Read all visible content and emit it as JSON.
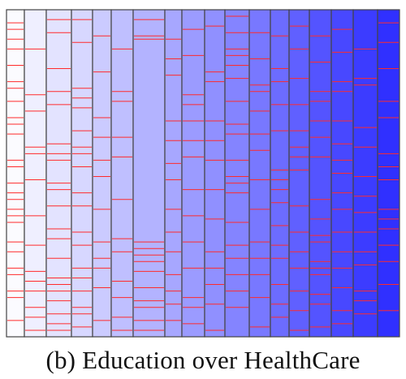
{
  "caption": "(b) Education over HealthCare",
  "colors": {
    "light_fill": "#fbfbff",
    "dark_fill": "#3030ff",
    "red_line": "#ff2a2a",
    "border": "#444444"
  },
  "strips": [
    {
      "lines": [
        0.04,
        0.06,
        0.09,
        0.12,
        0.17,
        0.22,
        0.24,
        0.28,
        0.33,
        0.35,
        0.38,
        0.46,
        0.48,
        0.53,
        0.56,
        0.58,
        0.61,
        0.63,
        0.65,
        0.71,
        0.74,
        0.79,
        0.81,
        0.86,
        0.88,
        0.95
      ]
    },
    {
      "lines": [
        0.12,
        0.26,
        0.31,
        0.42,
        0.44,
        0.52,
        0.63,
        0.72,
        0.8,
        0.83,
        0.86,
        0.91,
        0.94,
        0.98
      ]
    },
    {
      "lines": [
        0.03,
        0.07,
        0.18,
        0.25,
        0.29,
        0.41,
        0.44,
        0.46,
        0.53,
        0.55,
        0.6,
        0.67,
        0.7,
        0.76,
        0.82,
        0.84,
        0.86,
        0.89,
        0.93,
        0.96,
        0.98
      ]
    },
    {
      "lines": [
        0.03,
        0.1,
        0.24,
        0.27,
        0.3,
        0.37,
        0.42,
        0.44,
        0.48,
        0.56,
        0.6,
        0.68,
        0.72,
        0.79,
        0.82,
        0.86,
        0.91,
        0.93,
        0.97
      ]
    },
    {
      "lines": [
        0.08,
        0.19,
        0.33,
        0.39,
        0.46,
        0.51,
        0.61,
        0.71,
        0.76,
        0.79,
        0.85,
        0.95
      ]
    },
    {
      "lines": [
        0.12,
        0.25,
        0.28,
        0.39,
        0.45,
        0.58,
        0.7,
        0.74,
        0.83,
        0.88,
        0.94,
        0.98
      ]
    },
    {
      "lines": [
        0.03,
        0.08,
        0.09,
        0.71,
        0.73,
        0.75,
        0.77,
        0.8,
        0.85,
        0.89,
        0.91,
        0.95,
        0.98
      ]
    },
    {
      "lines": [
        0.09,
        0.15,
        0.2,
        0.34,
        0.4,
        0.47,
        0.52,
        0.61,
        0.68,
        0.74,
        0.81,
        0.86,
        0.9,
        0.95
      ]
    },
    {
      "lines": [
        0.06,
        0.14,
        0.26,
        0.29,
        0.34,
        0.4,
        0.45,
        0.55,
        0.63,
        0.71,
        0.79,
        0.88,
        0.91,
        0.96
      ]
    },
    {
      "lines": [
        0.05,
        0.19,
        0.22,
        0.34,
        0.4,
        0.46,
        0.55,
        0.64,
        0.74,
        0.79,
        0.84,
        0.9,
        0.98
      ]
    },
    {
      "lines": [
        0.02,
        0.07,
        0.12,
        0.14,
        0.17,
        0.21,
        0.28,
        0.35,
        0.38,
        0.46,
        0.51,
        0.53,
        0.56,
        0.65,
        0.72,
        0.76,
        0.81,
        0.86,
        0.91
      ]
    },
    {
      "lines": [
        0.07,
        0.15,
        0.23,
        0.25,
        0.31,
        0.38,
        0.43,
        0.52,
        0.61,
        0.71,
        0.76,
        0.81,
        0.88,
        0.97
      ]
    },
    {
      "lines": [
        0.08,
        0.18,
        0.22,
        0.29,
        0.37,
        0.49,
        0.52,
        0.55,
        0.59,
        0.66,
        0.72,
        0.76,
        0.84,
        0.9,
        0.94
      ]
    },
    {
      "lines": [
        0.05,
        0.12,
        0.21,
        0.29,
        0.37,
        0.42,
        0.45,
        0.49,
        0.6,
        0.68,
        0.74,
        0.79,
        0.86,
        0.92,
        0.98
      ]
    },
    {
      "lines": [
        0.08,
        0.16,
        0.25,
        0.28,
        0.34,
        0.39,
        0.45,
        0.58,
        0.64,
        0.69,
        0.71,
        0.77,
        0.79,
        0.81,
        0.87,
        0.9,
        0.97
      ]
    },
    {
      "lines": [
        0.06,
        0.13,
        0.22,
        0.25,
        0.34,
        0.41,
        0.46,
        0.5,
        0.56,
        0.61,
        0.68,
        0.74,
        0.79,
        0.85,
        0.92,
        0.96
      ]
    },
    {
      "lines": [
        0.12,
        0.21,
        0.23,
        0.36,
        0.42,
        0.51,
        0.57,
        0.62,
        0.68,
        0.74,
        0.78,
        0.86,
        0.89,
        0.93
      ]
    },
    {
      "lines": [
        0.04,
        0.1,
        0.18,
        0.28,
        0.33,
        0.44,
        0.48,
        0.52,
        0.61,
        0.64,
        0.67,
        0.72,
        0.77,
        0.84,
        0.92
      ]
    },
    {
      "lines": [
        0.05,
        0.13,
        0.18,
        0.22,
        0.3,
        0.39,
        0.48,
        0.55,
        0.61,
        0.73,
        0.85,
        0.91,
        0.95
      ]
    }
  ]
}
